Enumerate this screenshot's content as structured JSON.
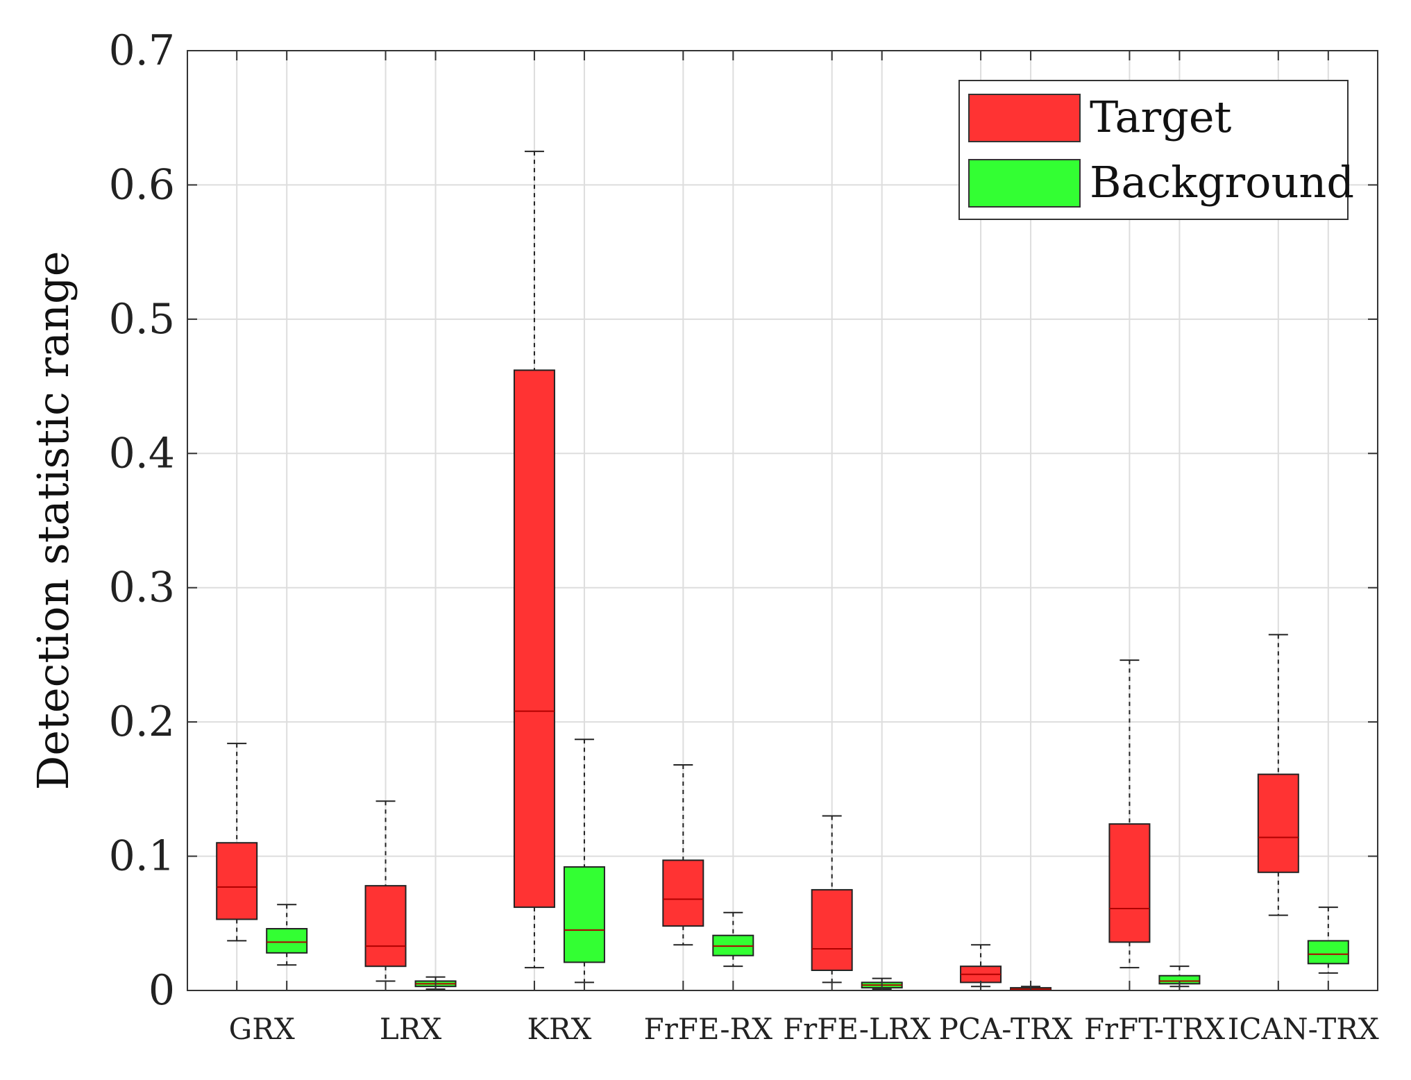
{
  "chart_data": {
    "type": "boxplot",
    "ylabel": "Detection statistic range",
    "xlabel": "",
    "ylim": [
      0,
      0.7
    ],
    "yticks": [
      "0",
      "0.1",
      "0.2",
      "0.3",
      "0.4",
      "0.5",
      "0.6",
      "0.7"
    ],
    "categories": [
      "GRX",
      "LRX",
      "KRX",
      "FrFE-RX",
      "FrFE-LRX",
      "PCA-TRX",
      "FrFT-TRX",
      "ICAN-TRX"
    ],
    "grid": true,
    "legend_position": "top-right",
    "series": [
      {
        "name": "Target",
        "color": "#ff3333",
        "boxes": [
          {
            "whisker_low": 0.037,
            "q1": 0.053,
            "median": 0.077,
            "q3": 0.11,
            "whisker_high": 0.184
          },
          {
            "whisker_low": 0.007,
            "q1": 0.018,
            "median": 0.033,
            "q3": 0.078,
            "whisker_high": 0.141
          },
          {
            "whisker_low": 0.017,
            "q1": 0.062,
            "median": 0.208,
            "q3": 0.462,
            "whisker_high": 0.625
          },
          {
            "whisker_low": 0.034,
            "q1": 0.048,
            "median": 0.068,
            "q3": 0.097,
            "whisker_high": 0.168
          },
          {
            "whisker_low": 0.006,
            "q1": 0.015,
            "median": 0.031,
            "q3": 0.075,
            "whisker_high": 0.13
          },
          {
            "whisker_low": 0.003,
            "q1": 0.006,
            "median": 0.012,
            "q3": 0.018,
            "whisker_high": 0.034
          },
          {
            "whisker_low": 0.017,
            "q1": 0.036,
            "median": 0.061,
            "q3": 0.124,
            "whisker_high": 0.246
          },
          {
            "whisker_low": 0.056,
            "q1": 0.088,
            "median": 0.114,
            "q3": 0.161,
            "whisker_high": 0.265
          }
        ]
      },
      {
        "name": "Background",
        "color": "#33ff33",
        "boxes": [
          {
            "whisker_low": 0.019,
            "q1": 0.028,
            "median": 0.036,
            "q3": 0.046,
            "whisker_high": 0.064
          },
          {
            "whisker_low": 0.001,
            "q1": 0.003,
            "median": 0.005,
            "q3": 0.007,
            "whisker_high": 0.01
          },
          {
            "whisker_low": 0.006,
            "q1": 0.021,
            "median": 0.045,
            "q3": 0.092,
            "whisker_high": 0.187
          },
          {
            "whisker_low": 0.018,
            "q1": 0.026,
            "median": 0.033,
            "q3": 0.041,
            "whisker_high": 0.058
          },
          {
            "whisker_low": 0.001,
            "q1": 0.002,
            "median": 0.004,
            "q3": 0.006,
            "whisker_high": 0.009
          },
          {
            "whisker_low": 0.0,
            "q1": 0.001,
            "median": 0.001,
            "q3": 0.002,
            "whisker_high": 0.003
          },
          {
            "whisker_low": 0.003,
            "q1": 0.005,
            "median": 0.007,
            "q3": 0.011,
            "whisker_high": 0.018
          },
          {
            "whisker_low": 0.013,
            "q1": 0.02,
            "median": 0.027,
            "q3": 0.037,
            "whisker_high": 0.062
          }
        ]
      }
    ]
  }
}
